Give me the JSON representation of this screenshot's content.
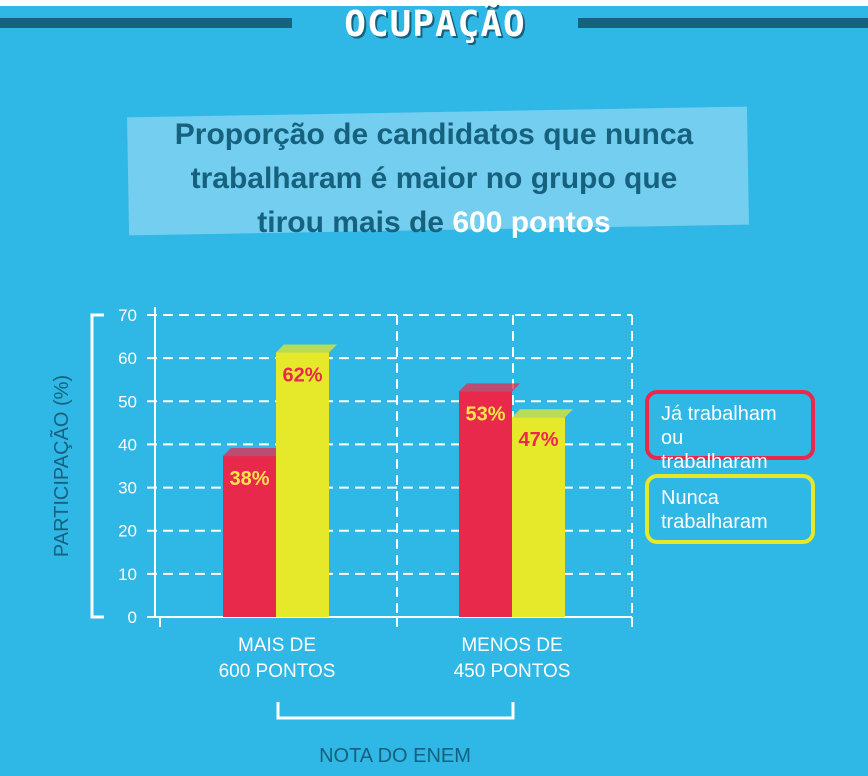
{
  "banner": {
    "title": "OCUPAÇÃO"
  },
  "headline": {
    "line1": "Proporção de candidatos que nunca",
    "line2": "trabalharam é maior no grupo que",
    "line3_before": "tirou mais de ",
    "line3_highlight": "600 pontos"
  },
  "colors": {
    "red": "#e8294b",
    "yellow": "#e6e82a",
    "navy": "#16617e",
    "background": "#2fb7e6"
  },
  "chart_data": {
    "type": "bar",
    "title": "",
    "ylabel": "PARTICIPAÇÃO (%)",
    "xlabel": "NOTA DO ENEM",
    "ylim": [
      0,
      70
    ],
    "yticks": [
      0,
      10,
      20,
      30,
      40,
      50,
      60,
      70
    ],
    "categories": [
      {
        "line1": "MAIS DE",
        "line2": "600 PONTOS"
      },
      {
        "line1": "MENOS DE",
        "line2": "450 PONTOS"
      }
    ],
    "series": [
      {
        "name": "Já trabalham ou trabalharam",
        "values": [
          38,
          53
        ],
        "labels": [
          "38%",
          "53%"
        ]
      },
      {
        "name": "Nunca trabalharam",
        "values": [
          62,
          47
        ],
        "labels": [
          "62%",
          "47%"
        ]
      }
    ],
    "grid": true,
    "legend_position": "right",
    "legend": [
      {
        "line1": "Já trabalham ou",
        "line2": "trabalharam"
      },
      {
        "line1": "Nunca",
        "line2": "trabalharam"
      }
    ]
  }
}
